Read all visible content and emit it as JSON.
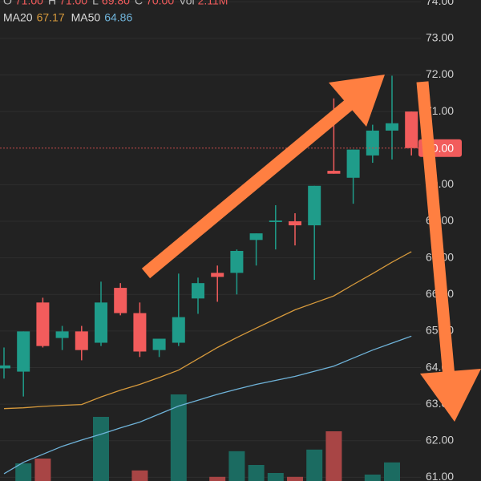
{
  "chart_data": {
    "type": "candlestick",
    "header": [
      {
        "label": "O",
        "value": "71.00"
      },
      {
        "label": "H",
        "value": "71.00"
      },
      {
        "label": "L",
        "value": "69.80"
      },
      {
        "label": "C",
        "value": "70.00"
      },
      {
        "label": "Vol",
        "value": "2.11M"
      }
    ],
    "categories": [
      null,
      null,
      null,
      null,
      null,
      null,
      null,
      null,
      null,
      null,
      null,
      null,
      null,
      null,
      null,
      null,
      null,
      null,
      null,
      null,
      null,
      null
    ],
    "open": [
      63.98,
      63.89,
      65.78,
      64.81,
      64.99,
      64.68,
      66.18,
      65.49,
      64.48,
      64.68,
      65.89,
      66.59,
      66.59,
      67.49,
      67.98,
      68.0,
      67.89,
      69.38,
      69.19,
      69.8,
      70.48,
      71.0
    ],
    "high": [
      64.55,
      64.99,
      65.91,
      65.14,
      65.14,
      66.35,
      66.31,
      65.78,
      64.79,
      66.57,
      66.46,
      66.79,
      67.23,
      67.67,
      68.44,
      68.22,
      68.97,
      71.36,
      69.96,
      70.64,
      71.98,
      71.0
    ],
    "low": [
      63.7,
      63.21,
      64.55,
      64.48,
      64.2,
      64.59,
      65.43,
      64.29,
      64.29,
      64.59,
      65.47,
      65.8,
      66.0,
      66.79,
      67.23,
      67.34,
      66.4,
      69.3,
      68.48,
      69.6,
      69.69,
      69.8
    ],
    "close": [
      64.06,
      64.99,
      64.59,
      64.99,
      64.48,
      65.78,
      65.49,
      64.44,
      64.79,
      65.38,
      66.31,
      66.48,
      67.19,
      67.67,
      68.02,
      67.89,
      68.97,
      69.3,
      69.96,
      70.48,
      70.68,
      70.0
    ],
    "up_color": "#1f9c8a",
    "down_color": "#f25c5c",
    "volume": [
      null,
      0.55,
      0.7,
      null,
      null,
      2.0,
      null,
      0.33,
      null,
      2.7,
      null,
      0.13,
      0.93,
      0.5,
      0.25,
      0.13,
      0.98,
      1.55,
      null,
      0.2,
      0.58,
      null
    ],
    "volume_lim": [
      0,
      3
    ],
    "volume_up_color": "#1b6b61",
    "volume_down_color": "#a84545",
    "series": [
      {
        "name": "MA20",
        "value_label": "67.17",
        "color": "#d79a3c",
        "values": [
          62.88,
          62.9,
          62.94,
          62.97,
          62.99,
          63.2,
          63.38,
          63.54,
          63.73,
          63.93,
          64.24,
          64.55,
          64.82,
          65.08,
          65.33,
          65.58,
          65.77,
          65.96,
          66.27,
          66.57,
          66.88,
          67.17
        ]
      },
      {
        "name": "MA50",
        "value_label": "64.86",
        "color": "#6fb3d9",
        "values": [
          61.1,
          61.41,
          61.63,
          61.85,
          62.02,
          62.18,
          62.35,
          62.51,
          62.73,
          62.95,
          63.11,
          63.27,
          63.41,
          63.54,
          63.65,
          63.76,
          63.9,
          64.04,
          64.26,
          64.48,
          64.67,
          64.86
        ]
      }
    ],
    "last_price_label": "70.00",
    "ylim": [
      60.9,
      74.05
    ],
    "yticks": [
      {
        "value": 61,
        "label": "61.00"
      },
      {
        "value": 62,
        "label": "62.00"
      },
      {
        "value": 63,
        "label": "63.00"
      },
      {
        "value": 64,
        "label": "64.00"
      },
      {
        "value": 65,
        "label": "65.00"
      },
      {
        "value": 66,
        "label": "66.00"
      },
      {
        "value": 67,
        "label": "67.00"
      },
      {
        "value": 68,
        "label": "68.00"
      },
      {
        "value": 69,
        "label": "69.00"
      },
      {
        "value": 71,
        "label": "71.00"
      },
      {
        "value": 72,
        "label": "72.00"
      },
      {
        "value": 73,
        "label": "73.00"
      },
      {
        "value": 74,
        "label": "74.00"
      }
    ],
    "grid": true
  }
}
